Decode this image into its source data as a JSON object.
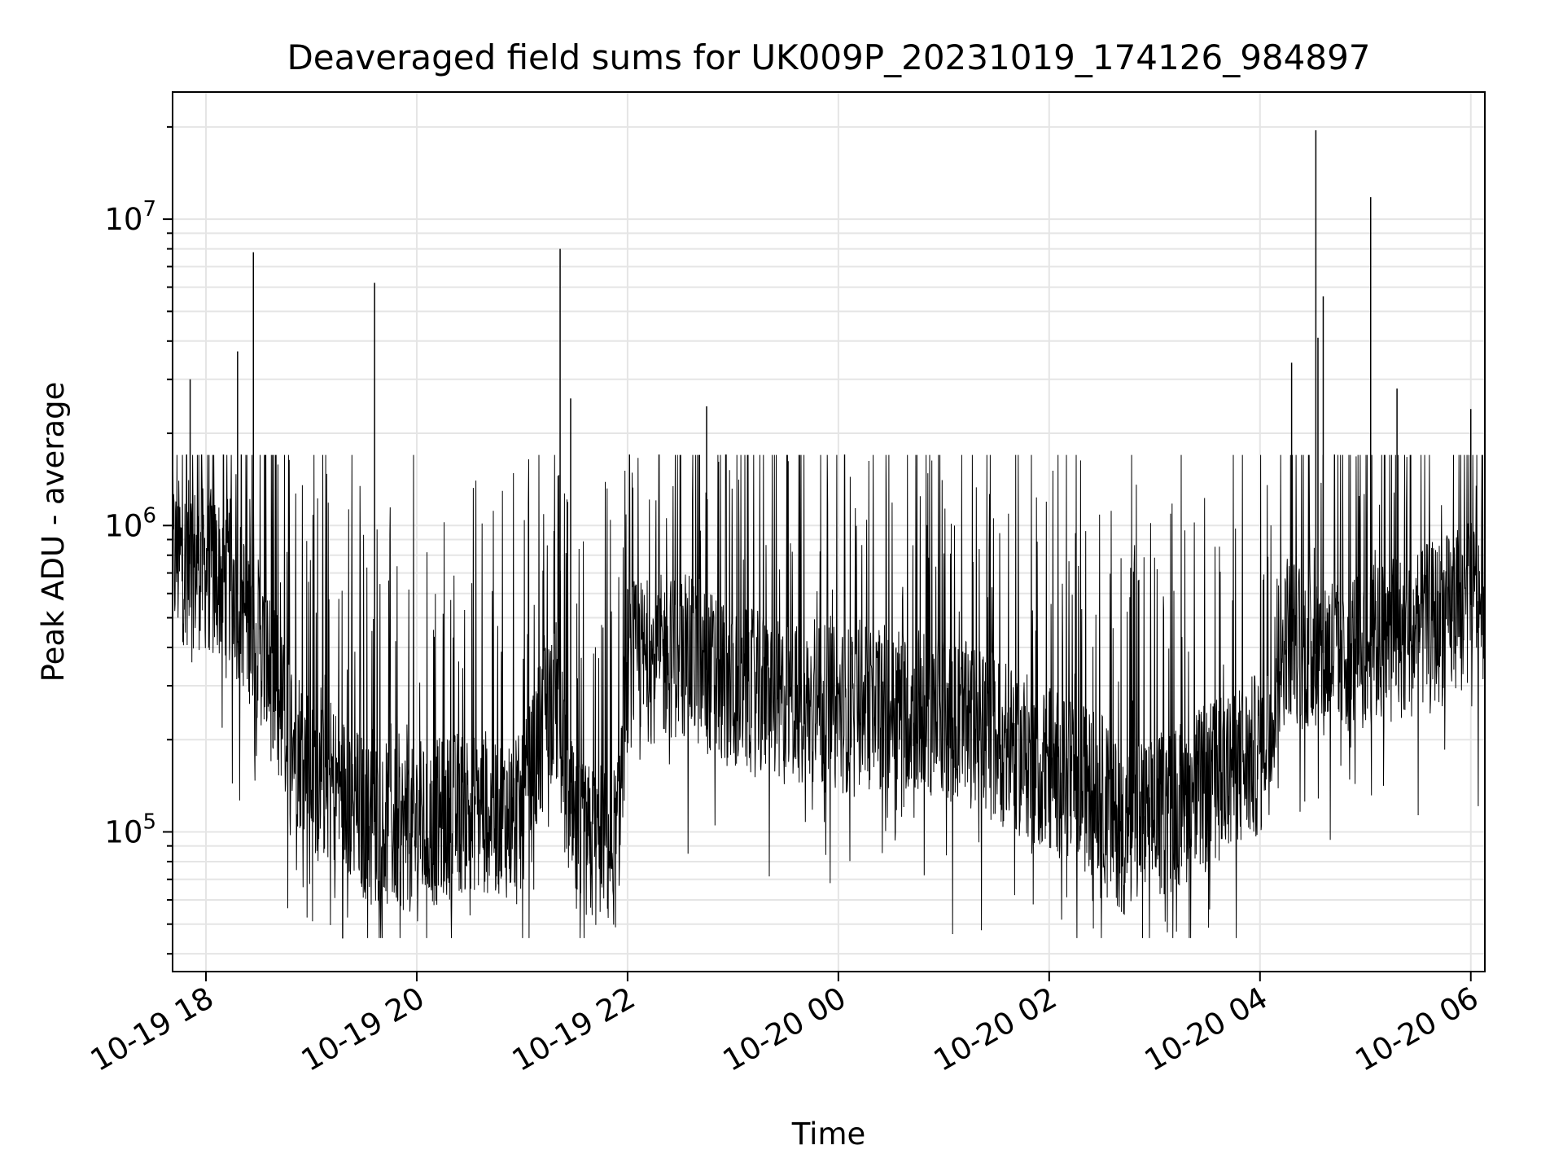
{
  "chart_data": {
    "type": "line",
    "title": "Deaveraged field sums for UK009P_20231019_174126_984897",
    "xlabel": "Time",
    "ylabel": "Peak ADU - average",
    "yscale": "log",
    "grid": true,
    "legend": "none",
    "line_color": "#000000",
    "grid_color": "#e5e5e5",
    "xlim": [
      "2023-10-19 17:41",
      "2023-10-20 06:08"
    ],
    "ylim": [
      35000,
      26000000
    ],
    "x_ticks": [
      "10-19 18",
      "10-19 20",
      "10-19 22",
      "10-20 00",
      "10-20 02",
      "10-20 04",
      "10-20 06"
    ],
    "y_ticks": [
      {
        "value": 100000,
        "base": "10",
        "exp": "5"
      },
      {
        "value": 1000000,
        "base": "10",
        "exp": "6"
      },
      {
        "value": 10000000,
        "base": "10",
        "exp": "7"
      }
    ],
    "series_profile": {
      "time_hours": [
        17.69,
        18.0,
        18.25,
        18.5,
        18.75,
        19.0,
        19.25,
        19.5,
        20.0,
        20.5,
        21.0,
        21.3,
        21.5,
        21.9,
        22.0,
        22.5,
        23.0,
        23.5,
        24.0,
        24.5,
        25.0,
        25.5,
        26.0,
        26.5,
        26.7,
        27.0,
        27.5,
        28.0,
        28.25,
        28.5,
        29.0,
        29.5,
        30.0,
        30.14
      ],
      "typical": [
        780000,
        720000,
        650000,
        420000,
        230000,
        160000,
        140000,
        110000,
        100000,
        120000,
        110000,
        300000,
        90000,
        90000,
        350000,
        380000,
        300000,
        260000,
        250000,
        260000,
        240000,
        200000,
        160000,
        130000,
        100000,
        110000,
        140000,
        180000,
        450000,
        380000,
        400000,
        450000,
        550000,
        600000
      ],
      "peaks": [
        {
          "t": 17.85,
          "v": 3000000
        },
        {
          "t": 18.3,
          "v": 3700000
        },
        {
          "t": 18.45,
          "v": 7800000
        },
        {
          "t": 19.6,
          "v": 6200000
        },
        {
          "t": 21.36,
          "v": 8000000
        },
        {
          "t": 21.46,
          "v": 2600000
        },
        {
          "t": 22.75,
          "v": 2450000
        },
        {
          "t": 28.3,
          "v": 3400000
        },
        {
          "t": 28.55,
          "v": 4100000
        },
        {
          "t": 28.53,
          "v": 19500000
        },
        {
          "t": 28.6,
          "v": 5600000
        },
        {
          "t": 29.05,
          "v": 11800000
        },
        {
          "t": 29.3,
          "v": 2800000
        },
        {
          "t": 30.0,
          "v": 2400000
        }
      ]
    }
  }
}
